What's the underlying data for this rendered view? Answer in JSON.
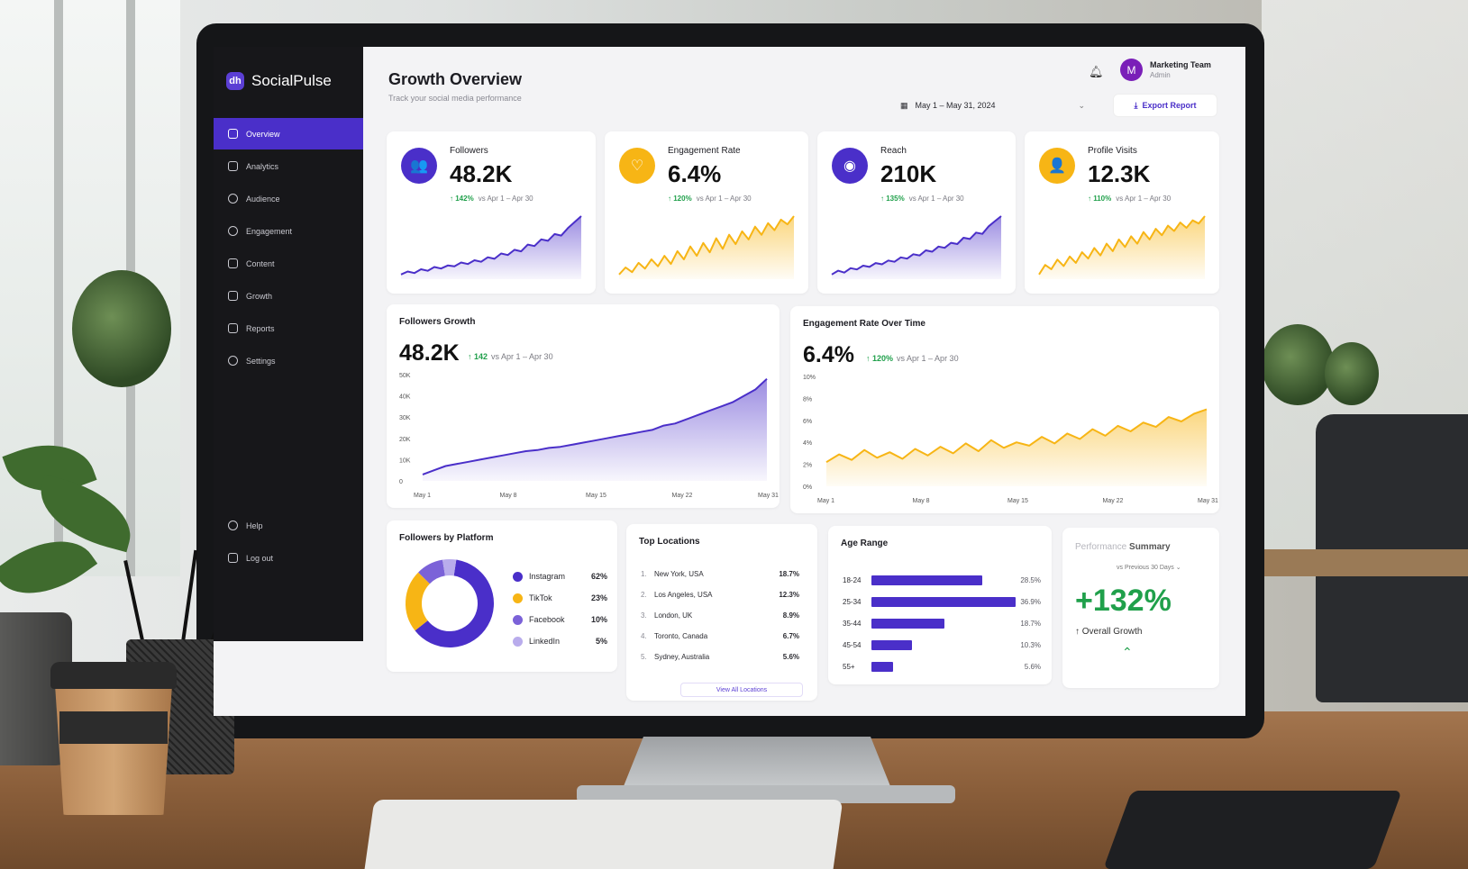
{
  "brand": {
    "name": "SocialPulse",
    "logo": "dh"
  },
  "sidebar": {
    "items": [
      {
        "label": "Overview",
        "icon": "grid-icon",
        "active": true
      },
      {
        "label": "Analytics",
        "icon": "chart-icon"
      },
      {
        "label": "Audience",
        "icon": "users-icon"
      },
      {
        "label": "Engagement",
        "icon": "refresh-icon"
      },
      {
        "label": "Content",
        "icon": "image-icon"
      },
      {
        "label": "Growth",
        "icon": "growth-icon"
      },
      {
        "label": "Reports",
        "icon": "document-icon"
      },
      {
        "label": "Settings",
        "icon": "gear-icon"
      }
    ],
    "bottom": [
      {
        "label": "Help",
        "icon": "help-icon"
      },
      {
        "label": "Log out",
        "icon": "logout-icon"
      }
    ]
  },
  "header": {
    "title": "Growth Overview",
    "subtitle": "Track your social media performance",
    "user_initial": "M",
    "user_name": "Marketing Team",
    "user_role": "Admin",
    "date_range": "May 1 – May 31, 2024",
    "export_label": "Export Report"
  },
  "kpis": [
    {
      "label": "Followers",
      "value": "48.2K",
      "delta": "↑ 142%",
      "compare": "vs Apr 1 – Apr 30",
      "color": "#4a2fc9",
      "icon": "users-icon",
      "glyph": "👥",
      "trend": [
        10,
        14,
        12,
        17,
        15,
        20,
        18,
        22,
        21,
        26,
        24,
        29,
        27,
        33,
        31,
        38,
        36,
        43,
        41,
        50,
        48,
        57,
        55,
        64,
        62,
        72,
        80,
        88
      ]
    },
    {
      "label": "Engagement Rate",
      "value": "6.4%",
      "delta": "↑ 120%",
      "compare": "vs Apr 1 – Apr 30",
      "color": "#f7b515",
      "icon": "heart-icon",
      "glyph": "♡",
      "trend": [
        2.2,
        2.8,
        2.4,
        3.2,
        2.7,
        3.5,
        2.9,
        3.8,
        3.1,
        4.2,
        3.5,
        4.6,
        3.8,
        4.9,
        4.1,
        5.3,
        4.4,
        5.6,
        4.8,
        5.9,
        5.2,
        6.3,
        5.6,
        6.6,
        6.0,
        6.9,
        6.5,
        7.2
      ]
    },
    {
      "label": "Reach",
      "value": "210K",
      "delta": "↑ 135%",
      "compare": "vs Apr 1 – Apr 30",
      "color": "#4a2fc9",
      "icon": "eye-icon",
      "glyph": "◉",
      "trend": [
        20,
        26,
        23,
        30,
        28,
        34,
        32,
        38,
        36,
        42,
        40,
        47,
        45,
        52,
        50,
        58,
        56,
        64,
        62,
        70,
        68,
        78,
        76,
        86,
        84,
        96,
        104,
        112
      ]
    },
    {
      "label": "Profile Visits",
      "value": "12.3K",
      "delta": "↑ 110%",
      "compare": "vs Apr 1 – Apr 30",
      "color": "#f7b515",
      "icon": "user-icon",
      "glyph": "👤",
      "trend": [
        2.0,
        2.9,
        2.5,
        3.4,
        2.8,
        3.7,
        3.1,
        4.1,
        3.5,
        4.5,
        3.8,
        4.9,
        4.2,
        5.3,
        4.6,
        5.6,
        4.9,
        6.0,
        5.3,
        6.3,
        5.7,
        6.6,
        6.1,
        6.9,
        6.4,
        7.1,
        6.8,
        7.5
      ]
    }
  ],
  "charts": {
    "followers_growth": {
      "title": "Followers Growth",
      "value": "48.2K",
      "delta": "↑ 142",
      "compare": "vs Apr 1 – Apr 30"
    },
    "engagement_over_time": {
      "title": "Engagement Rate Over Time",
      "value": "6.4%",
      "delta": "↑ 120%",
      "compare": "vs Apr 1 – Apr 30"
    }
  },
  "chart_data": [
    {
      "type": "area",
      "title": "Followers Growth",
      "x": [
        "May 1",
        "May 2",
        "May 3",
        "May 4",
        "May 5",
        "May 6",
        "May 7",
        "May 8",
        "May 9",
        "May 10",
        "May 11",
        "May 12",
        "May 13",
        "May 14",
        "May 15",
        "May 16",
        "May 17",
        "May 18",
        "May 19",
        "May 20",
        "May 21",
        "May 22",
        "May 23",
        "May 24",
        "May 25",
        "May 26",
        "May 27",
        "May 28",
        "May 29",
        "May 30",
        "May 31"
      ],
      "y": [
        3,
        5,
        7,
        8,
        9,
        10,
        11,
        12,
        13,
        14,
        14.5,
        15.5,
        16,
        17,
        18,
        19,
        20,
        21,
        22,
        23,
        24,
        26,
        27,
        29,
        31,
        33,
        35,
        37,
        40,
        43,
        48
      ],
      "ylim": [
        0,
        50
      ],
      "yticks": [
        "0",
        "10K",
        "20K",
        "30K",
        "40K",
        "50K"
      ],
      "xticks": [
        "May 1",
        "May 8",
        "May 15",
        "May 22",
        "May 31"
      ],
      "color": "#4a2fc9"
    },
    {
      "type": "area",
      "title": "Engagement Rate Over Time",
      "x": [
        "May 1",
        "May 2",
        "May 3",
        "May 4",
        "May 5",
        "May 6",
        "May 7",
        "May 8",
        "May 9",
        "May 10",
        "May 11",
        "May 12",
        "May 13",
        "May 14",
        "May 15",
        "May 16",
        "May 17",
        "May 18",
        "May 19",
        "May 20",
        "May 21",
        "May 22",
        "May 23",
        "May 24",
        "May 25",
        "May 26",
        "May 27",
        "May 28",
        "May 29",
        "May 30",
        "May 31"
      ],
      "y": [
        2.2,
        2.9,
        2.4,
        3.3,
        2.6,
        3.1,
        2.5,
        3.4,
        2.8,
        3.6,
        3.0,
        3.9,
        3.2,
        4.2,
        3.5,
        4.0,
        3.7,
        4.5,
        3.9,
        4.8,
        4.3,
        5.2,
        4.6,
        5.5,
        5.0,
        5.8,
        5.4,
        6.3,
        5.9,
        6.6,
        7.0
      ],
      "ylim": [
        0,
        10
      ],
      "yticks": [
        "0%",
        "2%",
        "4%",
        "6%",
        "8%",
        "10%"
      ],
      "xticks": [
        "May 1",
        "May 8",
        "May 15",
        "May 22",
        "May 31"
      ],
      "color": "#f7b515"
    },
    {
      "type": "pie",
      "title": "Followers by Platform",
      "categories": [
        "Instagram",
        "TikTok",
        "Facebook",
        "LinkedIn"
      ],
      "values": [
        62,
        23,
        10,
        5
      ],
      "labels": [
        "62%",
        "23%",
        "10%",
        "5%"
      ],
      "colors": [
        "#4a2fc9",
        "#f7b515",
        "#7b62d8",
        "#b9acec"
      ]
    },
    {
      "type": "bar",
      "title": "Age Range",
      "categories": [
        "18-24",
        "25-34",
        "35-44",
        "45-54",
        "55+"
      ],
      "values": [
        28.5,
        36.9,
        18.7,
        10.3,
        5.6
      ],
      "labels": [
        "28.5%",
        "36.9%",
        "18.7%",
        "10.3%",
        "5.6%"
      ],
      "xlim": [
        0,
        37
      ],
      "color": "#4a2fc9"
    }
  ],
  "top_locations": {
    "title": "Top Locations",
    "rows": [
      {
        "rank": "1.",
        "city": "New York, USA",
        "value": "18.7%"
      },
      {
        "rank": "2.",
        "city": "Los Angeles, USA",
        "value": "12.3%"
      },
      {
        "rank": "3.",
        "city": "London, UK",
        "value": "8.9%"
      },
      {
        "rank": "4.",
        "city": "Toronto, Canada",
        "value": "6.7%"
      },
      {
        "rank": "5.",
        "city": "Sydney, Australia",
        "value": "5.6%"
      }
    ],
    "view_all": "View All Locations"
  },
  "performance": {
    "title_light": "Performance",
    "title_bold": "Summary",
    "compare": "vs Previous 30 Days",
    "value": "+132%",
    "caption": "↑ Overall Growth"
  }
}
